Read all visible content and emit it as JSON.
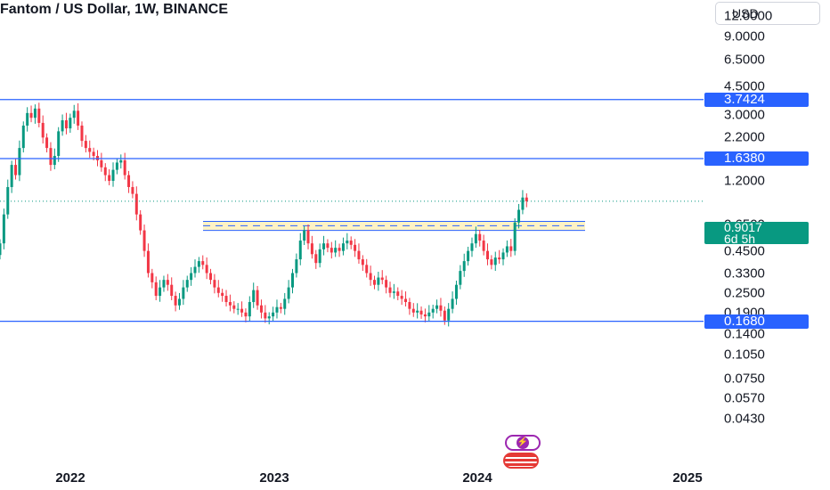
{
  "header": {
    "title": "Fantom / US Dollar, 1W, BINANCE",
    "currency": "USD"
  },
  "chart_data": {
    "type": "candlestick",
    "title": "Fantom / US Dollar, 1W, BINANCE",
    "y_scale": "log",
    "y_ticks": [
      "12.0000",
      "9.0000",
      "6.5000",
      "4.5000",
      "3.0000",
      "2.2000",
      "1.2000",
      "0.6500",
      "0.4500",
      "0.3300",
      "0.2500",
      "0.1900",
      "0.1400",
      "0.1050",
      "0.0750",
      "0.0570",
      "0.0430"
    ],
    "x_ticks": [
      "2022",
      "2023",
      "2024",
      "2025"
    ],
    "horizontal_levels": [
      {
        "value": 3.7424,
        "label": "3.7424",
        "color": "#2962ff"
      },
      {
        "value": 1.638,
        "label": "1.6380",
        "color": "#2962ff"
      },
      {
        "value": 0.168,
        "label": "0.1680",
        "color": "#2962ff"
      }
    ],
    "resistance_zone": {
      "low": 0.6,
      "high": 0.68,
      "mid": 0.64,
      "from": "2022-08",
      "to": "2024-05"
    },
    "last_price": {
      "value": 0.9017,
      "label": "0.9017",
      "countdown": "6d 5h",
      "color": "#089981"
    },
    "colors": {
      "up": "#089981",
      "down": "#f23645",
      "level": "#2962ff",
      "zone_fill": "#fff3c4"
    },
    "closes": [
      0.5,
      0.75,
      1.1,
      1.5,
      1.3,
      1.9,
      2.6,
      3.1,
      2.9,
      3.3,
      2.7,
      2.2,
      1.9,
      1.5,
      1.7,
      2.4,
      2.8,
      2.5,
      2.9,
      3.2,
      2.6,
      2.1,
      1.9,
      1.8,
      1.7,
      1.6,
      1.45,
      1.3,
      1.2,
      1.4,
      1.55,
      1.6,
      1.3,
      1.1,
      1.0,
      0.75,
      0.6,
      0.45,
      0.33,
      0.29,
      0.24,
      0.27,
      0.3,
      0.28,
      0.24,
      0.21,
      0.23,
      0.27,
      0.3,
      0.33,
      0.36,
      0.39,
      0.37,
      0.33,
      0.3,
      0.27,
      0.25,
      0.24,
      0.22,
      0.21,
      0.2,
      0.2,
      0.19,
      0.18,
      0.22,
      0.26,
      0.21,
      0.19,
      0.175,
      0.18,
      0.19,
      0.205,
      0.2,
      0.23,
      0.27,
      0.33,
      0.4,
      0.52,
      0.6,
      0.5,
      0.43,
      0.38,
      0.46,
      0.5,
      0.47,
      0.44,
      0.47,
      0.45,
      0.5,
      0.52,
      0.49,
      0.45,
      0.4,
      0.37,
      0.33,
      0.3,
      0.28,
      0.31,
      0.3,
      0.27,
      0.25,
      0.255,
      0.24,
      0.23,
      0.22,
      0.2,
      0.19,
      0.195,
      0.185,
      0.18,
      0.19,
      0.2,
      0.21,
      0.195,
      0.17,
      0.2,
      0.23,
      0.28,
      0.34,
      0.39,
      0.45,
      0.5,
      0.57,
      0.52,
      0.45,
      0.4,
      0.37,
      0.41,
      0.4,
      0.44,
      0.48,
      0.45,
      0.67,
      0.8,
      0.95,
      0.9017
    ]
  }
}
